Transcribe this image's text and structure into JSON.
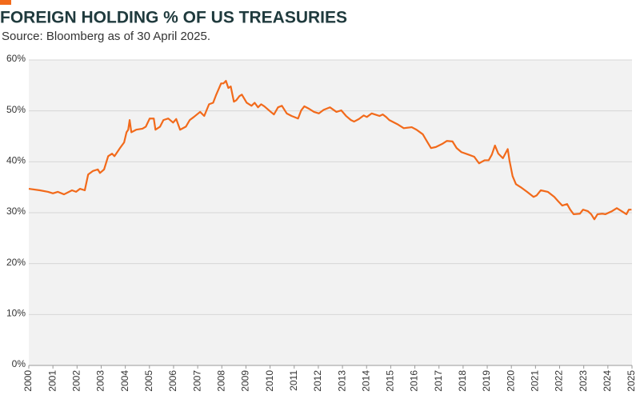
{
  "chart_data": {
    "type": "line",
    "title": "FOREIGN HOLDING % OF US TREASURIES",
    "subtitle": "Source: Bloomberg as of 30 April 2025.",
    "x": [
      2000.0,
      2000.46,
      2000.8,
      2001.0,
      2001.2,
      2001.46,
      2001.79,
      2001.96,
      2002.12,
      2002.32,
      2002.46,
      2002.66,
      2002.86,
      2002.95,
      2003.12,
      2003.29,
      2003.45,
      2003.55,
      2003.78,
      2003.95,
      2004.05,
      2004.12,
      2004.18,
      2004.25,
      2004.45,
      2004.71,
      2004.85,
      2005.01,
      2005.18,
      2005.25,
      2005.44,
      2005.58,
      2005.78,
      2005.98,
      2006.11,
      2006.27,
      2006.51,
      2006.67,
      2006.84,
      2007.1,
      2007.27,
      2007.47,
      2007.64,
      2007.77,
      2007.97,
      2008.07,
      2008.17,
      2008.27,
      2008.37,
      2008.5,
      2008.6,
      2008.73,
      2008.83,
      2009.03,
      2009.23,
      2009.36,
      2009.5,
      2009.63,
      2009.76,
      2010.03,
      2010.16,
      2010.33,
      2010.49,
      2010.69,
      2010.89,
      2011.16,
      2011.29,
      2011.42,
      2011.62,
      2011.82,
      2012.02,
      2012.22,
      2012.48,
      2012.75,
      2012.95,
      2013.15,
      2013.35,
      2013.48,
      2013.68,
      2013.88,
      2014.01,
      2014.21,
      2014.54,
      2014.67,
      2014.81,
      2014.94,
      2015.27,
      2015.54,
      2015.87,
      2016.07,
      2016.33,
      2016.53,
      2016.67,
      2016.87,
      2017.13,
      2017.33,
      2017.56,
      2017.73,
      2017.93,
      2018.23,
      2018.46,
      2018.66,
      2018.89,
      2019.06,
      2019.19,
      2019.32,
      2019.46,
      2019.65,
      2019.85,
      2019.92,
      2020.05,
      2020.19,
      2020.39,
      2020.65,
      2020.92,
      2021.05,
      2021.22,
      2021.51,
      2021.78,
      2021.95,
      2022.11,
      2022.31,
      2022.44,
      2022.58,
      2022.84,
      2022.97,
      2023.17,
      2023.31,
      2023.44,
      2023.57,
      2023.77,
      2023.9,
      2024.17,
      2024.37,
      2024.57,
      2024.77,
      2024.87,
      2024.98
    ],
    "series": [
      {
        "color": "#f26a1b",
        "values": [
          34.7,
          34.4,
          34.1,
          33.8,
          34.1,
          33.6,
          34.4,
          34.1,
          34.7,
          34.4,
          37.5,
          38.2,
          38.5,
          37.8,
          38.5,
          41.1,
          41.6,
          41.1,
          42.7,
          43.8,
          45.8,
          46.3,
          48.2,
          45.8,
          46.3,
          46.5,
          46.9,
          48.5,
          48.5,
          46.3,
          46.9,
          48.2,
          48.5,
          47.7,
          48.4,
          46.3,
          46.9,
          48.2,
          48.8,
          49.8,
          49.0,
          51.3,
          51.6,
          53.2,
          55.4,
          55.4,
          55.9,
          54.5,
          54.8,
          51.8,
          52.1,
          52.9,
          53.2,
          51.6,
          51.0,
          51.6,
          50.7,
          51.3,
          50.9,
          49.8,
          49.3,
          50.7,
          51.0,
          49.5,
          49.0,
          48.5,
          50.1,
          50.9,
          50.4,
          49.8,
          49.5,
          50.2,
          50.7,
          49.8,
          50.1,
          49.0,
          48.2,
          47.9,
          48.4,
          49.1,
          48.8,
          49.5,
          49.0,
          49.3,
          48.8,
          48.2,
          47.4,
          46.6,
          46.8,
          46.3,
          45.4,
          43.8,
          42.7,
          42.9,
          43.5,
          44.1,
          44.0,
          42.7,
          41.9,
          41.4,
          41.0,
          39.7,
          40.3,
          40.3,
          41.4,
          43.2,
          41.6,
          40.7,
          42.5,
          40.3,
          37.2,
          35.6,
          35.0,
          34.1,
          33.1,
          33.4,
          34.4,
          34.1,
          33.1,
          32.2,
          31.4,
          31.7,
          30.6,
          29.7,
          29.8,
          30.6,
          30.3,
          29.7,
          28.7,
          29.7,
          29.8,
          29.7,
          30.3,
          30.9,
          30.3,
          29.7,
          30.6,
          30.6
        ]
      }
    ],
    "xlim": [
      2000,
      2025
    ],
    "xticks": [
      2000,
      2001,
      2002,
      2003,
      2004,
      2005,
      2006,
      2007,
      2008,
      2009,
      2010,
      2011,
      2012,
      2013,
      2014,
      2015,
      2016,
      2017,
      2018,
      2019,
      2020,
      2021,
      2022,
      2023,
      2024,
      2025
    ],
    "ylim": [
      0,
      60
    ],
    "yticks": [
      {
        "value": 0,
        "label": "0%"
      },
      {
        "value": 10,
        "label": "10%"
      },
      {
        "value": 20,
        "label": "20%"
      },
      {
        "value": 30,
        "label": "30%"
      },
      {
        "value": 40,
        "label": "40%"
      },
      {
        "value": 50,
        "label": "50%"
      },
      {
        "value": 60,
        "label": "60%"
      }
    ],
    "grid": true
  }
}
